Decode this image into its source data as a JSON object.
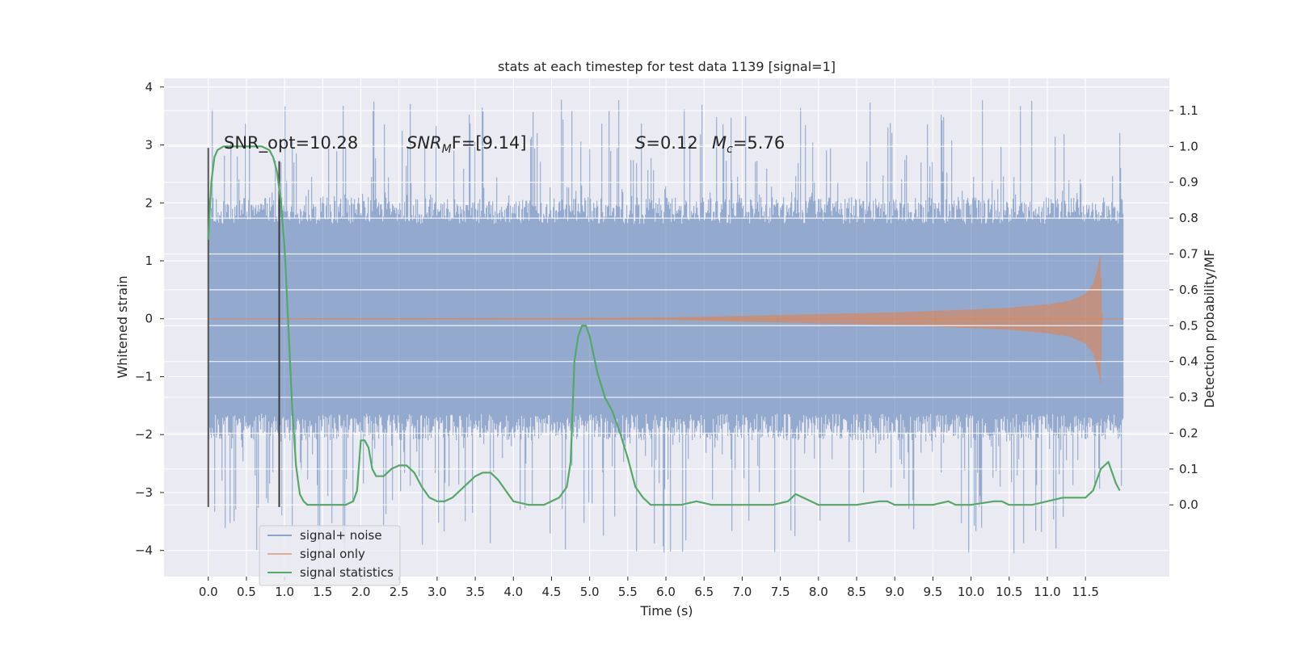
{
  "chart_data": {
    "type": "line",
    "title": "stats at each timestep for test data 1139 [signal=1]",
    "xlabel": "Time (s)",
    "ylabel_left": "Whitened strain",
    "ylabel_right": "Detection probability/MF",
    "xlim": [
      -0.58,
      12.6
    ],
    "ylim_left": [
      -4.45,
      4.15
    ],
    "ylim_right": [
      -0.2,
      1.19
    ],
    "x_ticks": [
      0.0,
      0.5,
      1.0,
      1.5,
      2.0,
      2.5,
      3.0,
      3.5,
      4.0,
      4.5,
      5.0,
      5.5,
      6.0,
      6.5,
      7.0,
      7.5,
      8.0,
      8.5,
      9.0,
      9.5,
      10.0,
      10.5,
      11.0,
      11.5
    ],
    "x_tick_labels": [
      "0.0",
      "0.5",
      "1.0",
      "1.5",
      "2.0",
      "2.5",
      "3.0",
      "3.5",
      "4.0",
      "4.5",
      "5.0",
      "5.5",
      "6.0",
      "6.5",
      "7.0",
      "7.5",
      "8.0",
      "8.5",
      "9.0",
      "9.5",
      "10.0",
      "10.5",
      "11.0",
      "11.5"
    ],
    "y_left_ticks": [
      -4,
      -3,
      -2,
      -1,
      0,
      1,
      2,
      3,
      4
    ],
    "y_left_tick_labels": [
      "−4",
      "−3",
      "−2",
      "−1",
      "0",
      "1",
      "2",
      "3",
      "4"
    ],
    "y_right_ticks": [
      0.0,
      0.1,
      0.2,
      0.3,
      0.4,
      0.5,
      0.6,
      0.7,
      0.8,
      0.9,
      1.0,
      1.1
    ],
    "y_right_tick_labels": [
      "0.0",
      "0.1",
      "0.2",
      "0.3",
      "0.4",
      "0.5",
      "0.6",
      "0.7",
      "0.8",
      "0.9",
      "1.0",
      "1.1"
    ],
    "grid": true,
    "legend_position": "lower-left",
    "series": [
      {
        "name": "signal+ noise",
        "color": "#4c72b0",
        "axis": "left",
        "kind": "noise-strain",
        "x_start": 0.0,
        "x_end": 12.0,
        "typical_envelope": 2.1,
        "spike_peak_max": 3.8,
        "spike_trough_min": -4.05
      },
      {
        "name": "signal only",
        "color": "#dd8452",
        "axis": "left",
        "kind": "chirp",
        "amplitude_envelope": {
          "x": [
            0.0,
            6.0,
            7.0,
            8.0,
            9.0,
            10.0,
            10.5,
            11.0,
            11.3,
            11.5,
            11.6,
            11.65,
            11.7,
            11.72,
            12.0
          ],
          "y": [
            0.0,
            0.02,
            0.05,
            0.08,
            0.11,
            0.16,
            0.19,
            0.25,
            0.31,
            0.43,
            0.6,
            0.82,
            1.12,
            0.0,
            0.0
          ]
        }
      },
      {
        "name": "signal statistics",
        "color": "#55a868",
        "axis": "right",
        "kind": "line",
        "x": [
          0.0,
          0.04,
          0.08,
          0.12,
          0.2,
          0.3,
          0.5,
          0.7,
          0.8,
          0.85,
          0.9,
          0.95,
          1.0,
          1.05,
          1.1,
          1.15,
          1.2,
          1.25,
          1.3,
          1.4,
          1.6,
          1.8,
          1.9,
          1.95,
          2.0,
          2.05,
          2.1,
          2.15,
          2.2,
          2.3,
          2.4,
          2.5,
          2.6,
          2.7,
          2.8,
          2.9,
          3.0,
          3.1,
          3.2,
          3.3,
          3.4,
          3.5,
          3.6,
          3.7,
          3.8,
          3.9,
          4.0,
          4.2,
          4.4,
          4.6,
          4.7,
          4.75,
          4.8,
          4.85,
          4.9,
          4.95,
          5.0,
          5.1,
          5.2,
          5.3,
          5.4,
          5.5,
          5.6,
          5.7,
          5.8,
          6.0,
          6.2,
          6.4,
          6.6,
          7.0,
          7.4,
          7.6,
          7.7,
          7.8,
          7.9,
          8.0,
          8.2,
          8.5,
          8.8,
          8.9,
          9.0,
          9.5,
          9.7,
          9.8,
          10.0,
          10.3,
          10.4,
          10.5,
          10.8,
          11.0,
          11.2,
          11.4,
          11.5,
          11.6,
          11.7,
          11.8,
          11.85,
          11.9,
          11.95
        ],
        "y": [
          0.74,
          0.9,
          0.97,
          0.99,
          1.0,
          1.0,
          1.0,
          1.0,
          0.99,
          0.97,
          0.93,
          0.85,
          0.72,
          0.5,
          0.27,
          0.11,
          0.03,
          0.01,
          0.0,
          0.0,
          0.0,
          0.0,
          0.01,
          0.04,
          0.18,
          0.18,
          0.16,
          0.1,
          0.08,
          0.08,
          0.1,
          0.11,
          0.11,
          0.09,
          0.05,
          0.02,
          0.01,
          0.01,
          0.02,
          0.04,
          0.06,
          0.08,
          0.09,
          0.09,
          0.07,
          0.04,
          0.01,
          0.0,
          0.0,
          0.02,
          0.05,
          0.12,
          0.4,
          0.47,
          0.5,
          0.5,
          0.47,
          0.37,
          0.3,
          0.26,
          0.2,
          0.13,
          0.05,
          0.02,
          0.0,
          0.0,
          0.0,
          0.01,
          0.0,
          0.0,
          0.0,
          0.01,
          0.03,
          0.02,
          0.01,
          0.0,
          0.0,
          0.0,
          0.01,
          0.01,
          0.0,
          0.0,
          0.01,
          0.0,
          0.0,
          0.01,
          0.01,
          0.0,
          0.0,
          0.01,
          0.02,
          0.02,
          0.02,
          0.04,
          0.1,
          0.12,
          0.09,
          0.06,
          0.04
        ]
      }
    ],
    "vertical_lines": [
      {
        "x": 0.0,
        "ymin": -3.25,
        "ymax": 2.95,
        "color": "#555555"
      },
      {
        "x": 0.93,
        "ymin": -3.25,
        "ymax": 2.72,
        "color": "#3a3a3a"
      }
    ],
    "annotations": {
      "snr_opt": "SNR_opt=10.28",
      "snr_mf_base": "SNR",
      "snr_mf_sub": "M",
      "snr_mf_rest": "F=[9.14]",
      "s_var": "S",
      "s_val": "=0.12",
      "mc_base": "M",
      "mc_sub": "c",
      "mc_val": "=5.76"
    }
  }
}
